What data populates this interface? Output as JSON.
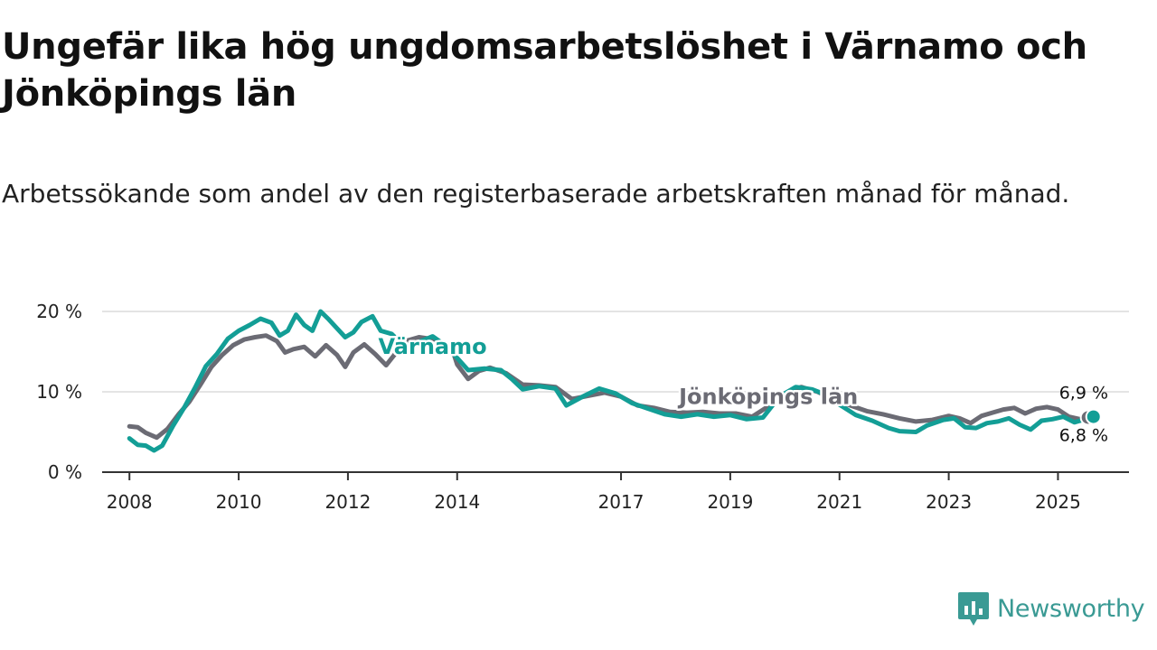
{
  "title": "Ungefär lika hög ungdomsarbetslöshet i Värnamo och Jönköpings län",
  "subtitle": "Arbetssökande som andel av den registerbaserade arbetskraften månad för månad.",
  "brand": {
    "name": "Newsworthy",
    "icon": "newsworthy-logo-icon",
    "color": "#3a9a94"
  },
  "chart_data": {
    "type": "line",
    "title": "Ungefär lika hög ungdomsarbetslöshet i Värnamo och Jönköpings län",
    "xlabel": "",
    "ylabel": "",
    "xlim": [
      2007.5,
      2026.3
    ],
    "ylim": [
      0,
      20
    ],
    "yticks": [
      {
        "value": 0,
        "label": "0 %"
      },
      {
        "value": 10,
        "label": "10 %"
      },
      {
        "value": 20,
        "label": "20 %"
      }
    ],
    "xticks": [
      {
        "value": 2008,
        "label": "2008"
      },
      {
        "value": 2010,
        "label": "2010"
      },
      {
        "value": 2012,
        "label": "2012"
      },
      {
        "value": 2014,
        "label": "2014"
      },
      {
        "value": 2017,
        "label": "2017"
      },
      {
        "value": 2019,
        "label": "2019"
      },
      {
        "value": 2021,
        "label": "2021"
      },
      {
        "value": 2023,
        "label": "2023"
      },
      {
        "value": 2025,
        "label": "2025"
      }
    ],
    "grid": true,
    "series": [
      {
        "name": "Jönköpings län",
        "color": "#6b6b74",
        "end_label": "6,8 %",
        "points": [
          [
            2008.0,
            5.7
          ],
          [
            2008.15,
            5.6
          ],
          [
            2008.3,
            4.9
          ],
          [
            2008.5,
            4.3
          ],
          [
            2008.7,
            5.4
          ],
          [
            2008.9,
            7.2
          ],
          [
            2009.1,
            8.8
          ],
          [
            2009.3,
            10.9
          ],
          [
            2009.5,
            13.1
          ],
          [
            2009.7,
            14.6
          ],
          [
            2009.9,
            15.8
          ],
          [
            2010.1,
            16.5
          ],
          [
            2010.3,
            16.8
          ],
          [
            2010.5,
            17.0
          ],
          [
            2010.7,
            16.3
          ],
          [
            2010.85,
            14.9
          ],
          [
            2011.0,
            15.3
          ],
          [
            2011.2,
            15.6
          ],
          [
            2011.4,
            14.4
          ],
          [
            2011.6,
            15.8
          ],
          [
            2011.8,
            14.6
          ],
          [
            2011.95,
            13.1
          ],
          [
            2012.1,
            14.9
          ],
          [
            2012.3,
            15.9
          ],
          [
            2012.5,
            14.7
          ],
          [
            2012.7,
            13.3
          ],
          [
            2012.85,
            14.6
          ],
          [
            2013.0,
            16.2
          ],
          [
            2013.3,
            16.8
          ],
          [
            2013.6,
            16.5
          ],
          [
            2013.9,
            15.5
          ],
          [
            2014.0,
            13.4
          ],
          [
            2014.2,
            11.6
          ],
          [
            2014.4,
            12.6
          ],
          [
            2014.6,
            13.0
          ],
          [
            2014.9,
            12.3
          ],
          [
            2015.2,
            10.9
          ],
          [
            2015.5,
            10.8
          ],
          [
            2015.8,
            10.6
          ],
          [
            2016.1,
            9.1
          ],
          [
            2016.4,
            9.5
          ],
          [
            2016.7,
            9.9
          ],
          [
            2017.0,
            9.4
          ],
          [
            2017.3,
            8.3
          ],
          [
            2017.6,
            8.0
          ],
          [
            2017.9,
            7.5
          ],
          [
            2018.2,
            7.4
          ],
          [
            2018.5,
            7.5
          ],
          [
            2018.8,
            7.3
          ],
          [
            2019.1,
            7.3
          ],
          [
            2019.4,
            6.9
          ],
          [
            2019.7,
            8.2
          ],
          [
            2020.0,
            9.8
          ],
          [
            2020.3,
            10.6
          ],
          [
            2020.6,
            10.0
          ],
          [
            2020.9,
            9.0
          ],
          [
            2021.2,
            8.3
          ],
          [
            2021.5,
            7.6
          ],
          [
            2021.8,
            7.2
          ],
          [
            2022.1,
            6.7
          ],
          [
            2022.4,
            6.3
          ],
          [
            2022.7,
            6.5
          ],
          [
            2023.0,
            7.0
          ],
          [
            2023.2,
            6.7
          ],
          [
            2023.4,
            6.1
          ],
          [
            2023.6,
            7.0
          ],
          [
            2023.8,
            7.4
          ],
          [
            2024.0,
            7.8
          ],
          [
            2024.2,
            8.0
          ],
          [
            2024.4,
            7.3
          ],
          [
            2024.6,
            7.9
          ],
          [
            2024.8,
            8.1
          ],
          [
            2025.0,
            7.8
          ],
          [
            2025.2,
            6.9
          ],
          [
            2025.4,
            6.6
          ],
          [
            2025.55,
            6.8
          ]
        ]
      },
      {
        "name": "Värnamo",
        "color": "#139e96",
        "end_label": "6,9 %",
        "points": [
          [
            2008.0,
            4.2
          ],
          [
            2008.15,
            3.4
          ],
          [
            2008.3,
            3.3
          ],
          [
            2008.45,
            2.7
          ],
          [
            2008.6,
            3.3
          ],
          [
            2008.8,
            5.8
          ],
          [
            2009.0,
            8.0
          ],
          [
            2009.2,
            10.5
          ],
          [
            2009.4,
            13.2
          ],
          [
            2009.6,
            14.7
          ],
          [
            2009.8,
            16.6
          ],
          [
            2010.0,
            17.6
          ],
          [
            2010.2,
            18.3
          ],
          [
            2010.4,
            19.1
          ],
          [
            2010.6,
            18.6
          ],
          [
            2010.75,
            17.0
          ],
          [
            2010.9,
            17.6
          ],
          [
            2011.05,
            19.6
          ],
          [
            2011.2,
            18.3
          ],
          [
            2011.35,
            17.6
          ],
          [
            2011.5,
            20.0
          ],
          [
            2011.65,
            19.0
          ],
          [
            2011.8,
            17.9
          ],
          [
            2011.95,
            16.8
          ],
          [
            2012.1,
            17.4
          ],
          [
            2012.25,
            18.7
          ],
          [
            2012.45,
            19.4
          ],
          [
            2012.6,
            17.6
          ],
          [
            2012.8,
            17.2
          ],
          [
            2012.95,
            16.2
          ],
          [
            2013.1,
            15.8
          ],
          [
            2013.3,
            16.2
          ],
          [
            2013.55,
            16.9
          ],
          [
            2013.8,
            15.7
          ],
          [
            2014.0,
            14.2
          ],
          [
            2014.2,
            12.7
          ],
          [
            2014.5,
            12.9
          ],
          [
            2014.8,
            12.7
          ],
          [
            2015.0,
            11.6
          ],
          [
            2015.2,
            10.3
          ],
          [
            2015.5,
            10.7
          ],
          [
            2015.8,
            10.4
          ],
          [
            2016.0,
            8.3
          ],
          [
            2016.3,
            9.4
          ],
          [
            2016.6,
            10.4
          ],
          [
            2016.9,
            9.8
          ],
          [
            2017.2,
            8.6
          ],
          [
            2017.5,
            7.9
          ],
          [
            2017.8,
            7.2
          ],
          [
            2018.1,
            6.9
          ],
          [
            2018.4,
            7.2
          ],
          [
            2018.7,
            6.9
          ],
          [
            2019.0,
            7.1
          ],
          [
            2019.3,
            6.6
          ],
          [
            2019.6,
            6.8
          ],
          [
            2019.9,
            9.4
          ],
          [
            2020.2,
            10.6
          ],
          [
            2020.5,
            10.3
          ],
          [
            2020.8,
            9.5
          ],
          [
            2021.0,
            8.4
          ],
          [
            2021.3,
            7.1
          ],
          [
            2021.6,
            6.4
          ],
          [
            2021.9,
            5.5
          ],
          [
            2022.1,
            5.1
          ],
          [
            2022.4,
            5.0
          ],
          [
            2022.6,
            5.8
          ],
          [
            2022.9,
            6.5
          ],
          [
            2023.1,
            6.7
          ],
          [
            2023.3,
            5.6
          ],
          [
            2023.5,
            5.5
          ],
          [
            2023.7,
            6.1
          ],
          [
            2023.9,
            6.3
          ],
          [
            2024.1,
            6.7
          ],
          [
            2024.3,
            5.9
          ],
          [
            2024.5,
            5.3
          ],
          [
            2024.7,
            6.4
          ],
          [
            2024.9,
            6.6
          ],
          [
            2025.1,
            6.9
          ],
          [
            2025.3,
            6.2
          ],
          [
            2025.5,
            6.6
          ],
          [
            2025.65,
            6.9
          ]
        ]
      }
    ],
    "annotations": [
      {
        "series": "Värnamo",
        "text": "Värnamo",
        "x": 2013.55,
        "y": 14.7
      },
      {
        "series": "Jönköpings län",
        "text": "Jönköpings län",
        "x": 2019.7,
        "y": 8.5
      }
    ]
  }
}
